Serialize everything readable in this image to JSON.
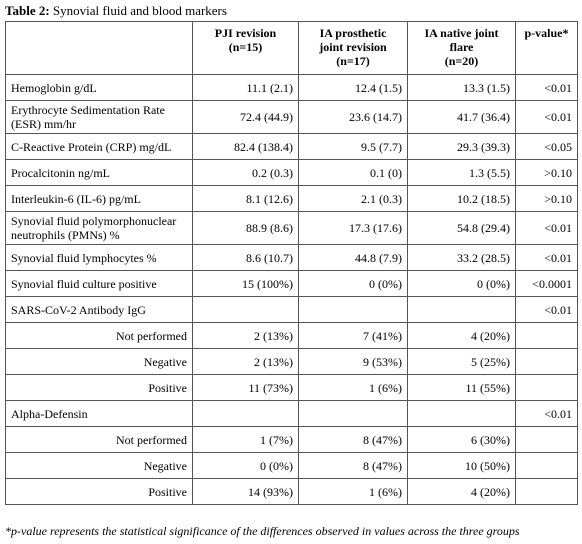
{
  "caption": {
    "label": "Table 2:",
    "text": "Synovial fluid and blood markers"
  },
  "table": {
    "headers": [
      [
        "PJI revision",
        "(n=15)"
      ],
      [
        "IA prosthetic",
        "joint revision",
        "(n=17)"
      ],
      [
        "IA native joint flare",
        "(n=20)"
      ],
      [
        "p-value*"
      ]
    ],
    "rows": [
      {
        "label": "Hemoglobin g/dL",
        "values": [
          "11.1 (2.1)",
          "12.4 (1.5)",
          "13.3 (1.5)"
        ],
        "p": "<0.01"
      },
      {
        "label": "Erythrocyte Sedimentation Rate (ESR) mm/hr",
        "values": [
          "72.4 (44.9)",
          "23.6 (14.7)",
          "41.7 (36.4)"
        ],
        "p": "<0.01"
      },
      {
        "label": "C-Reactive Protein (CRP) mg/dL",
        "values": [
          "82.4 (138.4)",
          "9.5 (7.7)",
          "29.3 (39.3)"
        ],
        "p": "<0.05"
      },
      {
        "label": "Procalcitonin ng/mL",
        "values": [
          "0.2 (0.3)",
          "0.1 (0)",
          "1.3 (5.5)"
        ],
        "p": ">0.10"
      },
      {
        "label": "Interleukin-6 (IL-6) pg/mL",
        "values": [
          "8.1 (12.6)",
          "2.1 (0.3)",
          "10.2 (18.5)"
        ],
        "p": ">0.10"
      },
      {
        "label": "Synovial fluid polymorphonuclear neutrophils (PMNs) %",
        "values": [
          "88.9 (8.6)",
          "17.3 (17.6)",
          "54.8 (29.4)"
        ],
        "p": "<0.01"
      },
      {
        "label": "Synovial fluid lymphocytes %",
        "values": [
          "8.6 (10.7)",
          "44.8 (7.9)",
          "33.2 (28.5)"
        ],
        "p": "<0.01"
      },
      {
        "label": "Synovial fluid culture positive",
        "values": [
          "15 (100%)",
          "0 (0%)",
          "0 (0%)"
        ],
        "p": "<0.0001"
      },
      {
        "label": "SARS-CoV-2 Antibody IgG",
        "p": "<0.01",
        "subrows": [
          {
            "label": "Not performed",
            "values": [
              "2 (13%)",
              "7 (41%)",
              "4 (20%)"
            ]
          },
          {
            "label": "Negative",
            "values": [
              "2 (13%)",
              "9 (53%)",
              "5 (25%)"
            ]
          },
          {
            "label": "Positive",
            "values": [
              "11 (73%)",
              "1 (6%)",
              "11 (55%)"
            ]
          }
        ]
      },
      {
        "label": "Alpha-Defensin",
        "p": "<0.01",
        "subrows": [
          {
            "label": "Not performed",
            "values": [
              "1 (7%)",
              "8 (47%)",
              "6 (30%)"
            ]
          },
          {
            "label": "Negative",
            "values": [
              "0 (0%)",
              "8 (47%)",
              "10 (50%)"
            ]
          },
          {
            "label": "Positive",
            "values": [
              "14 (93%)",
              "1 (6%)",
              "4 (20%)"
            ]
          }
        ]
      }
    ]
  },
  "footnote": "*p-value represents the statistical significance of the differences observed in values across the three groups"
}
